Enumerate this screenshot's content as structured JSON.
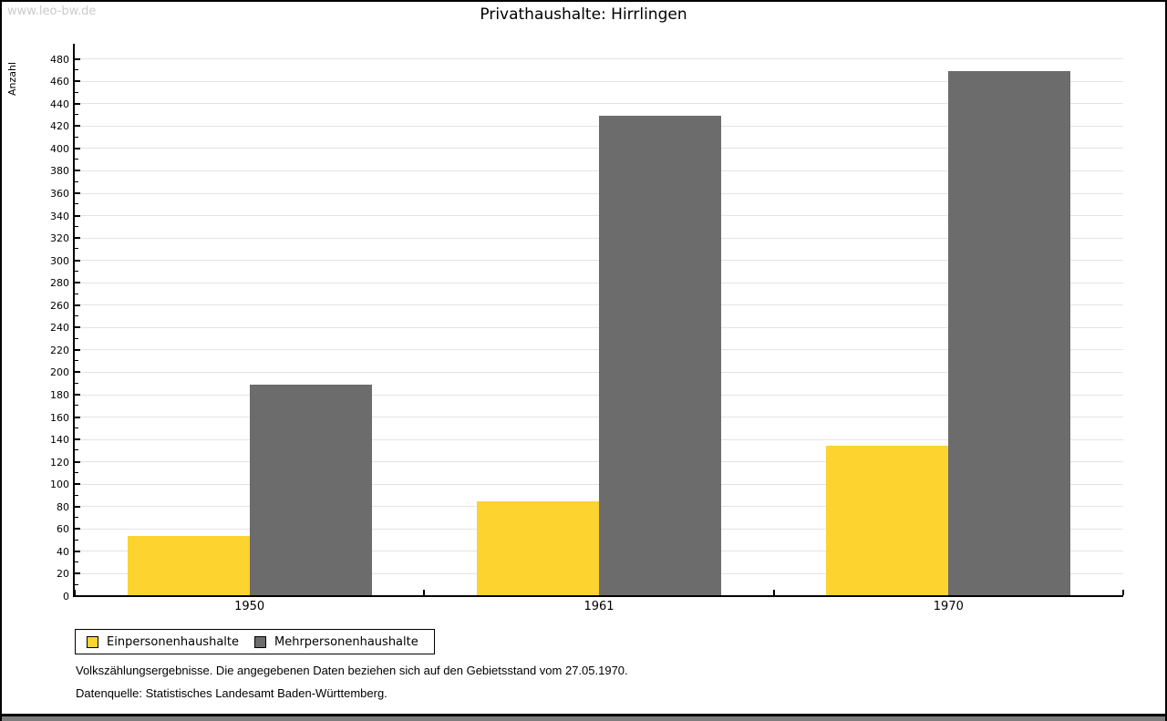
{
  "watermark": "www.leo-bw.de",
  "chart_data": {
    "type": "bar",
    "title": "Privathaushalte: Hirrlingen",
    "ylabel": "Anzahl",
    "xlabel": "",
    "categories": [
      "1950",
      "1961",
      "1970"
    ],
    "series": [
      {
        "name": "Einpersonenhaushalte",
        "color": "#fcd32f",
        "values": [
          54,
          85,
          134
        ]
      },
      {
        "name": "Mehrpersonenhaushalte",
        "color": "#6c6c6c",
        "values": [
          189,
          429,
          469
        ]
      }
    ],
    "ylim": [
      0,
      480
    ],
    "ytick_step": 20,
    "ytick_minor_step": 10,
    "grid": true,
    "legend_position": "bottom-left"
  },
  "footer": {
    "line1": "Volkszählungsergebnisse. Die angegebenen Daten beziehen sich auf den Gebietsstand vom 27.05.1970.",
    "line2": "Datenquelle: Statistisches Landesamt Baden-Württemberg."
  },
  "colors": {
    "grid": "#e4e4e4",
    "axis": "#000000",
    "watermark": "#cbcbcb",
    "bottom_strip": "#7d7d7d"
  }
}
